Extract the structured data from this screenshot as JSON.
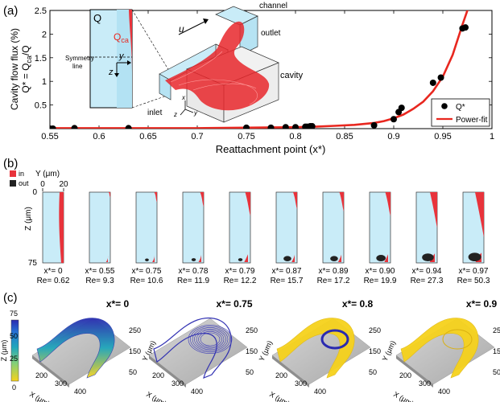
{
  "colors": {
    "fit_line": "#e8271f",
    "markers": "#000000",
    "sim_fill": "#c9ecf8",
    "in_red": "#e8333b",
    "out_black": "#222222",
    "axis": "#000000",
    "stream_blue": "#2233aa",
    "stream_yellow": "#f6d21c",
    "box_gray": "#bcbcbc"
  },
  "panel_a": {
    "label": "(a)",
    "inset": {
      "q_label": "Q",
      "qca_label": "Q",
      "qca_sub": "ca",
      "y_axis": "y",
      "z_axis": "z",
      "symmetry": "Symmetry line",
      "channel": "channel",
      "outlet": "outlet",
      "cavity": "cavity",
      "inlet": "inlet",
      "u": "u",
      "x_tri": "x",
      "y_tri": "y",
      "z_tri": "z"
    }
  },
  "panel_b": {
    "label": "(b)",
    "y_title": "Y (μm)",
    "y_tick0": "0",
    "y_tick20": "20",
    "z_title": "Z (μm)",
    "z_tick0": "0",
    "z_tick75": "75",
    "legend_in": "in",
    "legend_out": "out",
    "frames": [
      {
        "x": "x*= 0",
        "re": "Re= 0.62",
        "red": 1.0,
        "black": 0.0
      },
      {
        "x": "x*= 0.55",
        "re": "Re= 9.3",
        "red": 0.05,
        "black": 0.0
      },
      {
        "x": "x*= 0.75",
        "re": "Re= 10.6",
        "red": 0.15,
        "black": 0.05
      },
      {
        "x": "x*= 0.78",
        "re": "Re= 11.9",
        "red": 0.25,
        "black": 0.1
      },
      {
        "x": "x*= 0.79",
        "re": "Re= 12.2",
        "red": 0.45,
        "black": 0.1
      },
      {
        "x": "x*= 0.87",
        "re": "Re= 15.7",
        "red": 0.3,
        "black": 0.4
      },
      {
        "x": "x*= 0.89",
        "re": "Re= 17.2",
        "red": 0.35,
        "black": 0.4
      },
      {
        "x": "x*= 0.90",
        "re": "Re= 19.9",
        "red": 0.45,
        "black": 0.55
      },
      {
        "x": "x*= 0.94",
        "re": "Re= 27.3",
        "red": 0.7,
        "black": 0.75
      },
      {
        "x": "x*= 0.97",
        "re": "Re= 50.3",
        "red": 0.9,
        "black": 0.85
      }
    ]
  },
  "panel_c": {
    "label": "(c)",
    "colorbar_title": "Z (μm)",
    "colorbar_ticks": [
      "75",
      "50",
      "25",
      "0"
    ],
    "x_title": "X (μm)",
    "y_title": "Y (μm)",
    "x_ticks": [
      "200",
      "300",
      "400"
    ],
    "y_ticks": [
      "250",
      "150",
      "50"
    ],
    "titles": [
      "x*= 0",
      "x*= 0.75",
      "x*= 0.8",
      "x*= 0.9"
    ]
  },
  "chart_data": {
    "type": "scatter",
    "xlabel": "Reattachment point (x*)",
    "ylabel_line1": "Cavity flow flux (%)",
    "ylabel_line2": "Q* = Q",
    "ylabel_sub": "ca",
    "ylabel_tail": "/Q",
    "xlim": [
      0.55,
      1.0
    ],
    "ylim": [
      0,
      2.5
    ],
    "x_ticks": [
      "0.55",
      "0.6",
      "0.65",
      "0.7",
      "0.75",
      "0.8",
      "0.85",
      "0.9",
      "0.95",
      "1"
    ],
    "y_ticks": [
      "0.5",
      "1",
      "1.5",
      "2",
      "2.5"
    ],
    "legend": [
      "Q*",
      "Power-fit"
    ],
    "legend_position": "bottom-right",
    "series": [
      {
        "name": "Q*",
        "x": [
          0.55,
          0.553,
          0.575,
          0.63,
          0.75,
          0.775,
          0.79,
          0.8,
          0.81,
          0.812,
          0.815,
          0.817,
          0.88,
          0.9,
          0.905,
          0.908,
          0.94,
          0.948,
          0.97,
          0.973
        ],
        "y": [
          0.0,
          0.0,
          0.01,
          0.01,
          0.02,
          0.02,
          0.03,
          0.03,
          0.04,
          0.04,
          0.05,
          0.05,
          0.07,
          0.2,
          0.35,
          0.44,
          0.97,
          1.08,
          2.12,
          2.14
        ]
      },
      {
        "name": "Power-fit",
        "x": [
          0.55,
          0.6,
          0.65,
          0.7,
          0.75,
          0.8,
          0.82,
          0.84,
          0.86,
          0.88,
          0.89,
          0.9,
          0.91,
          0.92,
          0.93,
          0.94,
          0.95,
          0.96,
          0.97,
          0.975,
          0.98
        ],
        "y": [
          0.01,
          0.01,
          0.01,
          0.01,
          0.02,
          0.03,
          0.04,
          0.06,
          0.08,
          0.12,
          0.16,
          0.22,
          0.3,
          0.42,
          0.57,
          0.79,
          1.1,
          1.56,
          2.2,
          2.5,
          2.6
        ]
      }
    ]
  }
}
